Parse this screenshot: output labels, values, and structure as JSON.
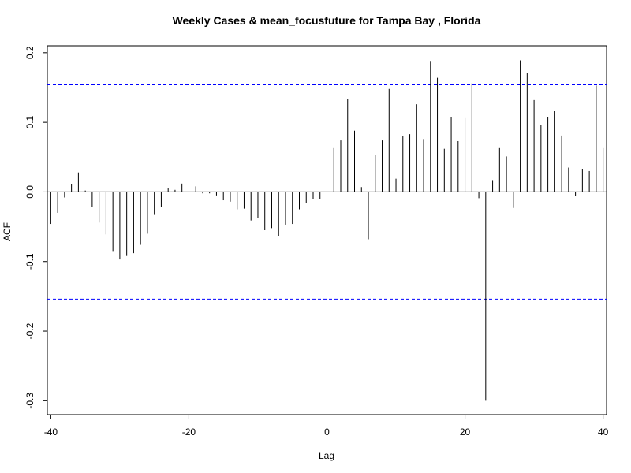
{
  "chart_data": {
    "type": "bar",
    "title": "Weekly Cases & mean_focusfuture for Tampa Bay , Florida",
    "xlabel": "Lag",
    "ylabel": "ACF",
    "xlim": [
      -40.5,
      40.5
    ],
    "ylim": [
      -0.32,
      0.21
    ],
    "xticks": [
      -40,
      -20,
      0,
      20,
      40
    ],
    "yticks": [
      -0.3,
      -0.2,
      -0.1,
      0.0,
      0.1,
      0.2
    ],
    "ytick_labels": [
      "-0.3",
      "-0.2",
      "-0.1",
      "0.0",
      "0.1",
      "0.2"
    ],
    "confidence_band": [
      -0.154,
      0.154
    ],
    "confidence_color": "#0000ff",
    "line_color": "#000000",
    "lags": [
      -40,
      -39,
      -38,
      -37,
      -36,
      -35,
      -34,
      -33,
      -32,
      -31,
      -30,
      -29,
      -28,
      -27,
      -26,
      -25,
      -24,
      -23,
      -22,
      -21,
      -20,
      -19,
      -18,
      -17,
      -16,
      -15,
      -14,
      -13,
      -12,
      -11,
      -10,
      -9,
      -8,
      -7,
      -6,
      -5,
      -4,
      -3,
      -2,
      -1,
      0,
      1,
      2,
      3,
      4,
      5,
      6,
      7,
      8,
      9,
      10,
      11,
      12,
      13,
      14,
      15,
      16,
      17,
      18,
      19,
      20,
      21,
      22,
      23,
      24,
      25,
      26,
      27,
      28,
      29,
      30,
      31,
      32,
      33,
      34,
      35,
      36,
      37,
      38,
      39,
      40
    ],
    "values": [
      -0.046,
      -0.03,
      -0.008,
      0.011,
      0.028,
      0.002,
      -0.022,
      -0.044,
      -0.061,
      -0.086,
      -0.097,
      -0.092,
      -0.088,
      -0.076,
      -0.06,
      -0.033,
      -0.022,
      0.005,
      0.003,
      0.012,
      0.0,
      0.008,
      -0.002,
      -0.002,
      -0.005,
      -0.012,
      -0.014,
      -0.025,
      -0.024,
      -0.041,
      -0.038,
      -0.055,
      -0.052,
      -0.063,
      -0.047,
      -0.046,
      -0.025,
      -0.016,
      -0.01,
      -0.01,
      0.093,
      0.063,
      0.074,
      0.133,
      0.088,
      0.007,
      -0.068,
      0.053,
      0.074,
      0.148,
      0.019,
      0.08,
      0.083,
      0.126,
      0.076,
      0.187,
      0.164,
      0.062,
      0.107,
      0.073,
      0.106,
      0.156,
      -0.009,
      -0.3,
      0.017,
      0.063,
      0.051,
      -0.023,
      0.189,
      0.171,
      0.132,
      0.096,
      0.108,
      0.116,
      0.081,
      0.035,
      -0.006,
      0.033,
      0.03,
      0.153,
      0.063
    ]
  }
}
